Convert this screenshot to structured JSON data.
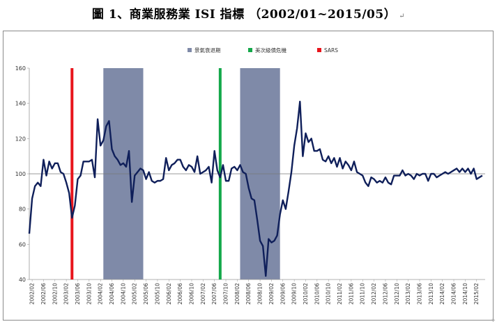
{
  "document": {
    "title": "圖 1、商業服務業 ISI 指標 （2002/01~2015/05）",
    "title_mark": "↵"
  },
  "chart_data": {
    "type": "line",
    "title": "",
    "xlabel": "",
    "ylabel": "",
    "ylim": [
      40,
      160
    ],
    "yticks": [
      40,
      60,
      80,
      100,
      120,
      140,
      160
    ],
    "reference_line": 100,
    "x_start": "2002/01",
    "x_end": "2015/05",
    "xtick_labels": [
      "2002/02",
      "2002/06",
      "2002/10",
      "2003/02",
      "2003/06",
      "2003/10",
      "2004/02",
      "2004/06",
      "2004/10",
      "2005/02",
      "2005/06",
      "2005/10",
      "2006/02",
      "2006/06",
      "2006/10",
      "2007/02",
      "2007/06",
      "2007/10",
      "2008/02",
      "2008/06",
      "2008/10",
      "2009/02",
      "2009/06",
      "2009/10",
      "2010/02",
      "2010/06",
      "2010/10",
      "2011/02",
      "2011/06",
      "2011/10",
      "2012/02",
      "2012/06",
      "2012/10",
      "2013/02",
      "2013/06",
      "2013/10",
      "2014/02",
      "2014/06",
      "2014/10",
      "2015/02"
    ],
    "legend_placement": "top-center",
    "legend": [
      {
        "label": "景氣衰退期",
        "color": "#7f8aa8",
        "kind": "band"
      },
      {
        "label": "美次級債危機",
        "color": "#14a84a",
        "kind": "line"
      },
      {
        "label": "SARS",
        "color": "#e8141b",
        "kind": "line"
      }
    ],
    "recession_bands": [
      [
        "2004/03",
        "2005/05"
      ],
      [
        "2008/03",
        "2009/05"
      ]
    ],
    "subprime_line": "2007/08",
    "sars_line": "2003/04",
    "series": [
      {
        "color": "#0f1f5a",
        "values": [
          66,
          86,
          93,
          95,
          93,
          108,
          99,
          107,
          103,
          106,
          106,
          101,
          100,
          95,
          89,
          75,
          82,
          97,
          99,
          107,
          107,
          107,
          108,
          98,
          131,
          116,
          119,
          127,
          130,
          114,
          110,
          108,
          105,
          106,
          104,
          113,
          84,
          99,
          101,
          103,
          102,
          97,
          101,
          96,
          95,
          96,
          96,
          97,
          109,
          102,
          105,
          106,
          108,
          108,
          104,
          102,
          105,
          104,
          101,
          110,
          100,
          101,
          102,
          104,
          95,
          113,
          102,
          98,
          105,
          96,
          96,
          103,
          104,
          102,
          105,
          101,
          100,
          92,
          86,
          85,
          74,
          62,
          59,
          42,
          63,
          61,
          62,
          65,
          77,
          85,
          80,
          90,
          101,
          116,
          126,
          141,
          110,
          123,
          118,
          120,
          113,
          113,
          114,
          108,
          107,
          110,
          106,
          109,
          104,
          109,
          103,
          107,
          105,
          102,
          107,
          101,
          100,
          99,
          95,
          93,
          98,
          97,
          95,
          96,
          95,
          98,
          95,
          94,
          99,
          99,
          99,
          102,
          99,
          100,
          99,
          97,
          100,
          99,
          100,
          100,
          96,
          100,
          100,
          98,
          99,
          100,
          101,
          100,
          101,
          102,
          103,
          101,
          103,
          101,
          103,
          100,
          103,
          97,
          98,
          99
        ]
      }
    ]
  }
}
